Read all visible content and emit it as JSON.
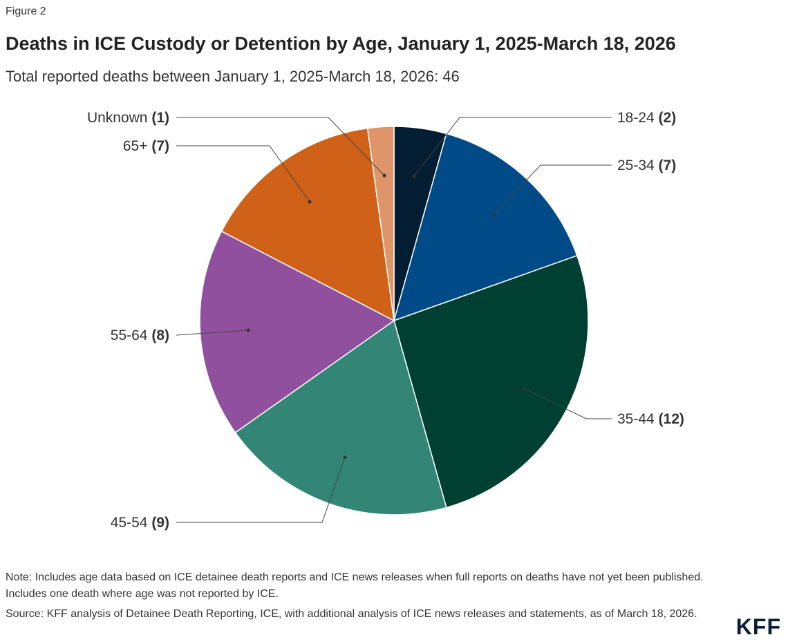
{
  "figure_label": "Figure 2",
  "chart_data": {
    "type": "pie",
    "title": "Deaths in ICE Custody or Detention by Age, January 1, 2025-March 18, 2026",
    "subtitle": "Total reported deaths between January 1, 2025-March 18, 2026: 46",
    "slices": [
      {
        "label": "18-24",
        "value": 2,
        "color": "#031e33"
      },
      {
        "label": "25-34",
        "value": 7,
        "color": "#004b87"
      },
      {
        "label": "35-44",
        "value": 12,
        "color": "#004033"
      },
      {
        "label": "45-54",
        "value": 9,
        "color": "#338675"
      },
      {
        "label": "55-64",
        "value": 8,
        "color": "#91509e"
      },
      {
        "label": "65+",
        "value": 7,
        "color": "#cf6118"
      },
      {
        "label": "Unknown",
        "value": 1,
        "color": "#de9569"
      }
    ],
    "start_angle": "top, clockwise"
  },
  "note": "Note: Includes age data based on ICE detainee death reports and ICE news releases when full reports on deaths have not yet been published. Includes one death where age was not reported by ICE.",
  "source": "Source: KFF analysis of Detainee Death Reporting, ICE, with additional analysis of ICE news releases and statements, as of March 18, 2026.",
  "logo": "KFF"
}
